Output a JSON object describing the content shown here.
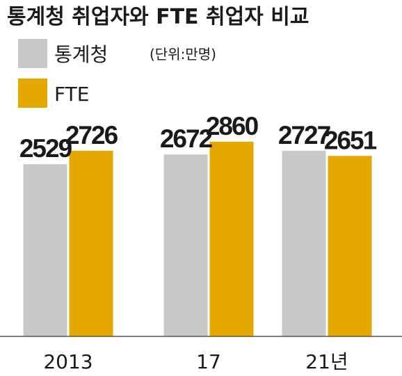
{
  "chart_data": {
    "type": "bar",
    "title": "통계청 취업자와 FTE 취업자 비교",
    "unit": "(단위:만명)",
    "categories": [
      "2013",
      "17",
      "21년"
    ],
    "series": [
      {
        "name": "통계청",
        "values": [
          2529,
          2672,
          2727
        ],
        "color": "#c8c8c8"
      },
      {
        "name": "FTE",
        "values": [
          2726,
          2860,
          2651
        ],
        "color": "#e5a800"
      }
    ],
    "xlabel": "",
    "ylabel": "",
    "grid": false,
    "legend": "top-left"
  }
}
